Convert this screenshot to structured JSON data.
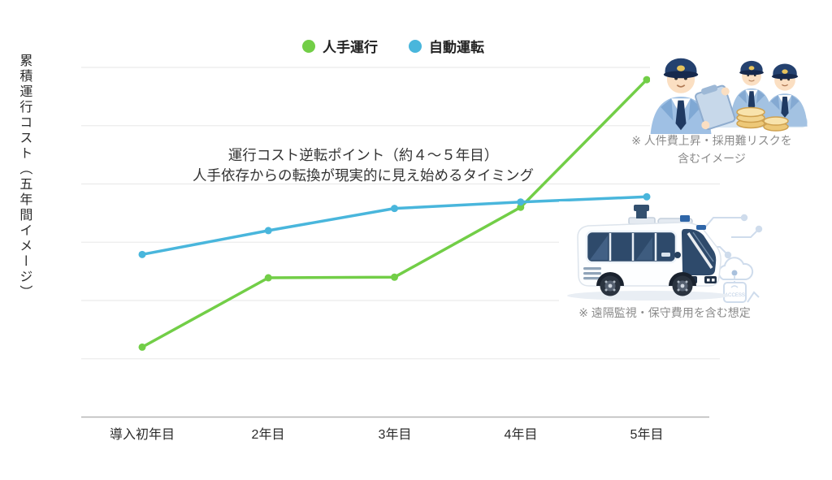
{
  "ylabel": {
    "line1": "累積運行コスト",
    "line2": "（五年間イメージ）"
  },
  "legend": {
    "items": [
      {
        "label": "人手運行",
        "color": "#72ce47"
      },
      {
        "label": "自動運転",
        "color": "#49b6dc"
      }
    ]
  },
  "annotation": {
    "line1": "運行コスト逆転ポイント（約４〜５年目）",
    "line2": "人手依存からの転換が現実的に見え始めるタイミング"
  },
  "notes": {
    "drivers_line1": "※ 人件費上昇・採用難リスクを",
    "drivers_line2": "含むイメージ",
    "bus": "※ 遠隔監視・保守費用を含む想定"
  },
  "icons": {
    "drivers": "uniformed-drivers-with-coins-illustration",
    "bus": "autonomous-shuttle-bus-illustration"
  },
  "chart_data": {
    "type": "line",
    "title": "",
    "xlabel": "",
    "ylabel": "累積運行コスト（五年間イメージ）",
    "categories": [
      "導入初年目",
      "2年目",
      "3年目",
      "4年目",
      "5年目"
    ],
    "series": [
      {
        "name": "人手運行",
        "color": "#72ce47",
        "values": [
          1.2,
          2.39,
          2.4,
          3.6,
          5.79
        ]
      },
      {
        "name": "自動運転",
        "color": "#49b6dc",
        "values": [
          2.79,
          3.2,
          3.58,
          3.69,
          3.78
        ]
      }
    ],
    "ylim": [
      0,
      6
    ],
    "y_tick_labels": "none (relative cumulative cost, unlabeled axis)",
    "grid": true,
    "legend_position": "top-center",
    "markers": true
  },
  "colors": {
    "grid": "#ebebeb",
    "axis": "#b6b6b6",
    "text": "#2b2b2b",
    "note": "#8b8b8b"
  }
}
